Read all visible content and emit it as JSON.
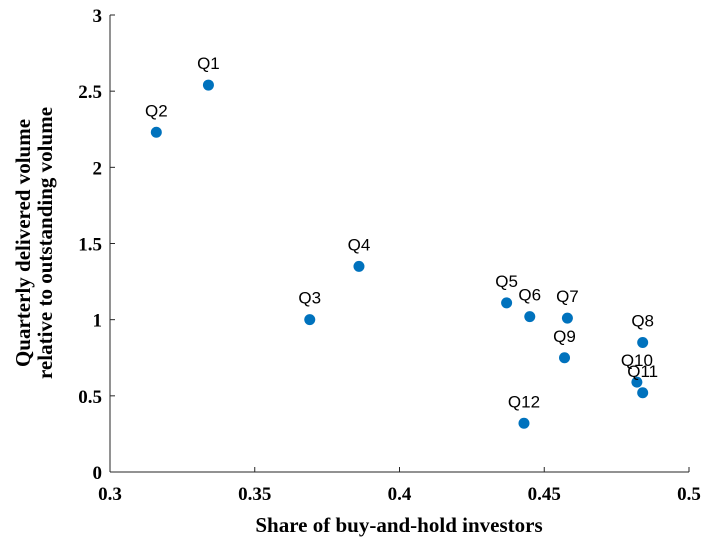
{
  "chart_data": {
    "type": "scatter",
    "x_label": "Share of buy-and-hold investors",
    "y_label": [
      "Quarterly delivered volume",
      "relative to outstanding volume"
    ],
    "series": [
      {
        "color": "#0072bd",
        "labels": [
          "Q1",
          "Q2",
          "Q3",
          "Q4",
          "Q5",
          "Q6",
          "Q7",
          "Q8",
          "Q9",
          "Q10",
          "Q11",
          "Q12"
        ],
        "x": [
          0.334,
          0.316,
          0.369,
          0.386,
          0.437,
          0.445,
          0.458,
          0.484,
          0.457,
          0.482,
          0.484,
          0.443
        ],
        "values": [
          2.54,
          2.23,
          1.0,
          1.35,
          1.11,
          1.02,
          1.01,
          0.85,
          0.75,
          0.59,
          0.52,
          0.32
        ]
      }
    ],
    "xlim": [
      0.3,
      0.5
    ],
    "xticks": [
      0.3,
      0.35,
      0.4,
      0.45,
      0.5
    ],
    "ylim": [
      0,
      3
    ],
    "yticks": [
      0,
      0.5,
      1,
      1.5,
      2,
      2.5,
      3
    ]
  }
}
